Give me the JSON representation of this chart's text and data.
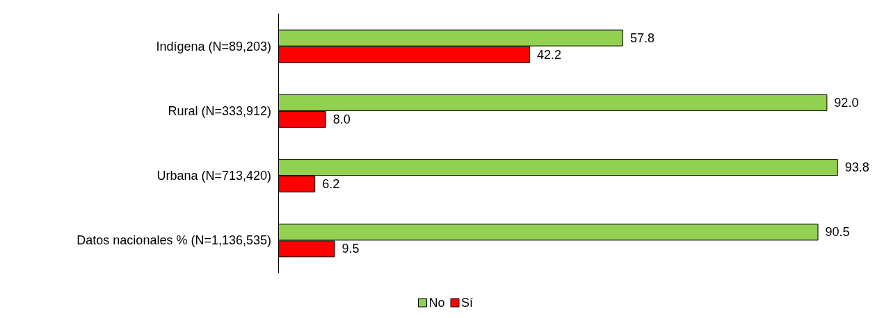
{
  "chart_data": {
    "type": "bar",
    "orientation": "horizontal",
    "categories": [
      "Indígena (N=89,203)",
      "Rural (N=333,912)",
      "Urbana (N=713,420)",
      "Datos nacionales % (N=1,136,535)"
    ],
    "series": [
      {
        "name": "No",
        "color": "#92d050",
        "values": [
          57.8,
          92.0,
          93.8,
          90.5
        ],
        "value_labels": [
          "57.8",
          "92.0",
          "93.8",
          "90.5"
        ]
      },
      {
        "name": "Sí",
        "color": "#ff0000",
        "values": [
          42.2,
          8.0,
          6.2,
          9.5
        ],
        "value_labels": [
          "42.2",
          "8.0",
          "6.2",
          "9.5"
        ]
      }
    ],
    "tick_labels": "y",
    "grid": false,
    "legend": "bottom"
  }
}
